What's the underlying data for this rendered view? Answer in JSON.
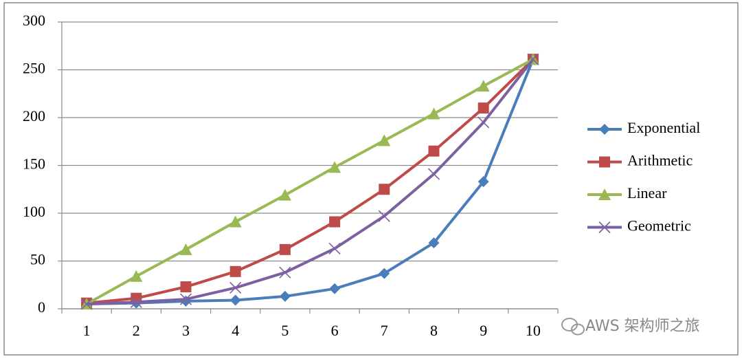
{
  "chart_data": {
    "type": "line",
    "categories": [
      "1",
      "2",
      "3",
      "4",
      "5",
      "6",
      "7",
      "8",
      "9",
      "10"
    ],
    "series": [
      {
        "name": "Exponential",
        "color": "#4a7ebb",
        "marker": "diamond",
        "values": [
          5,
          6,
          8,
          9,
          13,
          21,
          37,
          69,
          133,
          261
        ]
      },
      {
        "name": "Arithmetic",
        "color": "#be4b48",
        "marker": "square",
        "values": [
          6,
          11,
          23,
          39,
          62,
          91,
          125,
          165,
          210,
          261
        ]
      },
      {
        "name": "Linear",
        "color": "#98b954",
        "marker": "triangle",
        "values": [
          5,
          34,
          62,
          91,
          119,
          148,
          176,
          204,
          233,
          261
        ]
      },
      {
        "name": "Geometric",
        "color": "#7d60a0",
        "marker": "x",
        "values": [
          5,
          7,
          10,
          22,
          38,
          63,
          97,
          141,
          195,
          261
        ]
      }
    ],
    "ylim": [
      0,
      300
    ],
    "yticks": [
      0,
      50,
      100,
      150,
      200,
      250,
      300
    ],
    "grid": true,
    "legend": "right",
    "watermark": "AWS 架构师之旅"
  }
}
